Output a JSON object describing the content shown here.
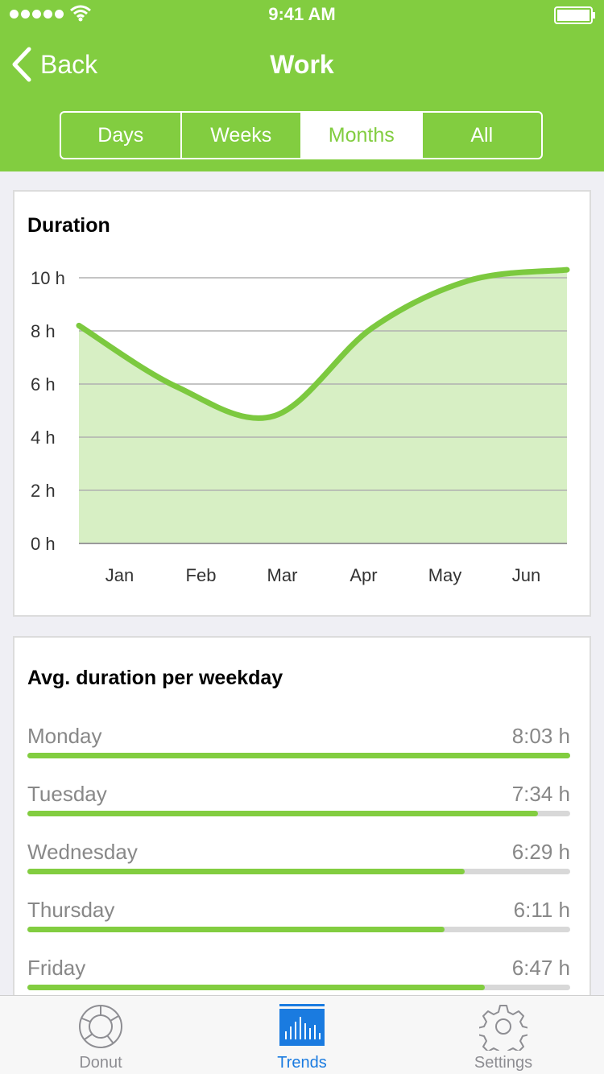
{
  "status_bar": {
    "time": "9:41 AM"
  },
  "nav": {
    "back_label": "Back",
    "title": "Work"
  },
  "segments": [
    {
      "label": "Days",
      "active": false
    },
    {
      "label": "Weeks",
      "active": false
    },
    {
      "label": "Months",
      "active": true
    },
    {
      "label": "All",
      "active": false
    }
  ],
  "duration_card": {
    "title": "Duration",
    "chart_data": {
      "type": "area",
      "categories": [
        "Jan",
        "Feb",
        "Mar",
        "Apr",
        "May",
        "Jun"
      ],
      "values": [
        8.2,
        5.9,
        4.8,
        8.1,
        9.9,
        10.3
      ],
      "title": "Duration",
      "xlabel": "",
      "ylabel": "",
      "ylim": [
        0,
        10
      ],
      "yticks": [
        "0 h",
        "2 h",
        "4 h",
        "6 h",
        "8 h",
        "10 h"
      ],
      "grid": true,
      "line_color": "#7cc93f",
      "fill_color": "#d7efc4"
    }
  },
  "weekday_card": {
    "title": "Avg. duration per weekday",
    "rows": [
      {
        "day": "Monday",
        "value": "8:03 h",
        "fraction": 1.0
      },
      {
        "day": "Tuesday",
        "value": "7:34 h",
        "fraction": 0.94
      },
      {
        "day": "Wednesday",
        "value": "6:29 h",
        "fraction": 0.806
      },
      {
        "day": "Thursday",
        "value": "6:11 h",
        "fraction": 0.768
      },
      {
        "day": "Friday",
        "value": "6:47 h",
        "fraction": 0.843
      }
    ]
  },
  "tabs": [
    {
      "label": "Donut",
      "icon": "donut-icon",
      "active": false
    },
    {
      "label": "Trends",
      "icon": "trends-icon",
      "active": true
    },
    {
      "label": "Settings",
      "icon": "gear-icon",
      "active": false
    }
  ],
  "colors": {
    "accent": "#82cd40",
    "tab_active": "#1a7be0"
  }
}
